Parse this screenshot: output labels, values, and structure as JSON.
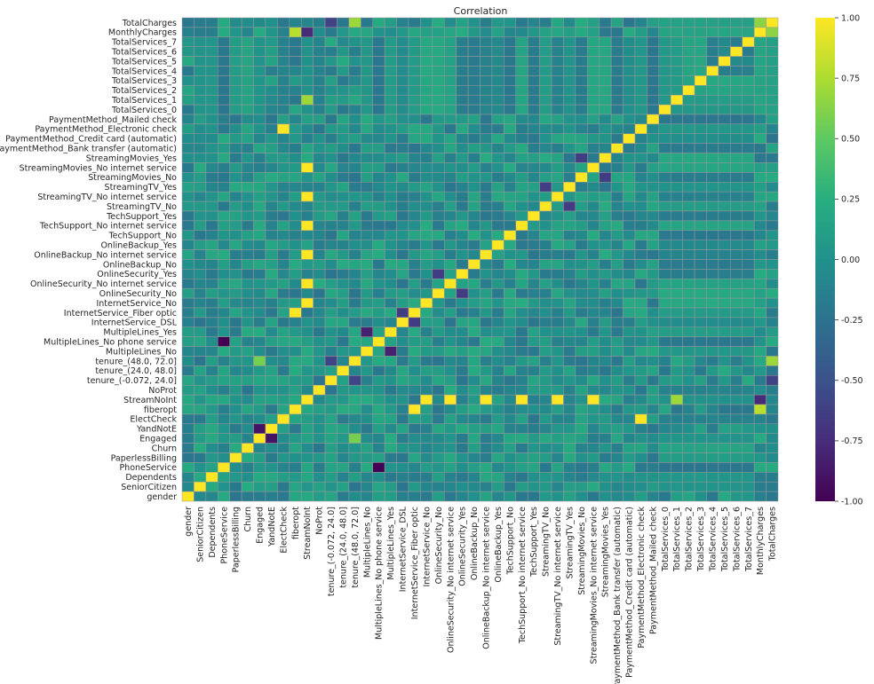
{
  "chart_data": {
    "type": "heatmap",
    "title": "Correlation",
    "variables": [
      "gender",
      "SeniorCitizen",
      "Dependents",
      "PhoneService",
      "PaperlessBilling",
      "Churn",
      "Engaged",
      "YandNotE",
      "ElectCheck",
      "fiberopt",
      "StreamNoInt",
      "NoProt",
      "tenure_(-0.072, 24.0]",
      "tenure_(24.0, 48.0]",
      "tenure_(48.0, 72.0]",
      "MultipleLines_No",
      "MultipleLines_No phone service",
      "MultipleLines_Yes",
      "InternetService_DSL",
      "InternetService_Fiber optic",
      "InternetService_No",
      "OnlineSecurity_No",
      "OnlineSecurity_No internet service",
      "OnlineSecurity_Yes",
      "OnlineBackup_No",
      "OnlineBackup_No internet service",
      "OnlineBackup_Yes",
      "TechSupport_No",
      "TechSupport_No internet service",
      "TechSupport_Yes",
      "StreamingTV_No",
      "StreamingTV_No internet service",
      "StreamingTV_Yes",
      "StreamingMovies_No",
      "StreamingMovies_No internet service",
      "StreamingMovies_Yes",
      "PaymentMethod_Bank transfer (automatic)",
      "PaymentMethod_Credit card (automatic)",
      "PaymentMethod_Electronic check",
      "PaymentMethod_Mailed check",
      "TotalServices_0",
      "TotalServices_1",
      "TotalServices_2",
      "TotalServices_3",
      "TotalServices_4",
      "TotalServices_5",
      "TotalServices_6",
      "TotalServices_7",
      "MonthlyCharges",
      "TotalCharges"
    ],
    "row_labels_top_to_bottom": [
      "TotalCharges",
      "MonthlyCharges",
      "TotalServices_7",
      "TotalServices_6",
      "TotalServices_5",
      "TotalServices_4",
      "TotalServices_3",
      "TotalServices_2",
      "TotalServices_1",
      "TotalServices_0",
      "PaymentMethod_Mailed check",
      "PaymentMethod_Electronic check",
      "PaymentMethod_Credit card (automatic)",
      "PaymentMethod_Bank transfer (automatic)",
      "StreamingMovies_Yes",
      "StreamingMovies_No internet service",
      "StreamingMovies_No",
      "StreamingTV_Yes",
      "StreamingTV_No internet service",
      "StreamingTV_No",
      "TechSupport_Yes",
      "TechSupport_No internet service",
      "TechSupport_No",
      "OnlineBackup_Yes",
      "OnlineBackup_No internet service",
      "OnlineBackup_No",
      "OnlineSecurity_Yes",
      "OnlineSecurity_No internet service",
      "OnlineSecurity_No",
      "InternetService_No",
      "InternetService_Fiber optic",
      "InternetService_DSL",
      "MultipleLines_Yes",
      "MultipleLines_No phone service",
      "MultipleLines_No",
      "tenure_(48.0, 72.0]",
      "tenure_(24.0, 48.0]",
      "tenure_(-0.072, 24.0]",
      "NoProt",
      "StreamNoInt",
      "fiberopt",
      "ElectCheck",
      "YandNotE",
      "Engaged",
      "Churn",
      "PaperlessBilling",
      "PhoneService",
      "Dependents",
      "SeniorCitizen",
      "gender"
    ],
    "colorbar": {
      "min": -1.0,
      "max": 1.0,
      "ticks": [
        "1.00",
        "0.75",
        "0.50",
        "0.25",
        "0.00",
        "-0.25",
        "-0.50",
        "-0.75",
        "-1.00"
      ]
    },
    "colormap": "viridis",
    "notable_values": [
      {
        "a": "StreamNoInt",
        "b": "InternetService_No",
        "value": 1.0
      },
      {
        "a": "StreamNoInt",
        "b": "OnlineSecurity_No internet service",
        "value": 1.0
      },
      {
        "a": "StreamNoInt",
        "b": "OnlineBackup_No internet service",
        "value": 1.0
      },
      {
        "a": "StreamNoInt",
        "b": "TechSupport_No internet service",
        "value": 1.0
      },
      {
        "a": "StreamNoInt",
        "b": "StreamingTV_No internet service",
        "value": 1.0
      },
      {
        "a": "StreamNoInt",
        "b": "StreamingMovies_No internet service",
        "value": 1.0
      },
      {
        "a": "fiberopt",
        "b": "InternetService_Fiber optic",
        "value": 1.0
      },
      {
        "a": "ElectCheck",
        "b": "PaymentMethod_Electronic check",
        "value": 1.0
      },
      {
        "a": "PhoneService",
        "b": "MultipleLines_No phone service",
        "value": -1.0
      },
      {
        "a": "YandNotE",
        "b": "Engaged",
        "value": -0.9
      },
      {
        "a": "MonthlyCharges",
        "b": "TotalCharges",
        "value": 0.65
      },
      {
        "a": "MonthlyCharges",
        "b": "StreamNoInt",
        "value": -0.76
      },
      {
        "a": "MonthlyCharges",
        "b": "fiberopt",
        "value": 0.79
      },
      {
        "a": "TotalCharges",
        "b": "tenure_(48.0, 72.0]",
        "value": 0.7
      },
      {
        "a": "TotalCharges",
        "b": "tenure_(-0.072, 24.0]",
        "value": -0.6
      },
      {
        "a": "TotalServices_1",
        "b": "StreamNoInt",
        "value": 0.7
      },
      {
        "a": "InternetService_DSL",
        "b": "InternetService_Fiber optic",
        "value": -0.64
      },
      {
        "a": "MultipleLines_No",
        "b": "MultipleLines_Yes",
        "value": -0.82
      },
      {
        "a": "tenure_(-0.072, 24.0]",
        "b": "tenure_(48.0, 72.0]",
        "value": -0.6
      },
      {
        "a": "Engaged",
        "b": "tenure_(48.0, 72.0]",
        "value": 0.58
      },
      {
        "a": "OnlineSecurity_No",
        "b": "OnlineSecurity_Yes",
        "value": -0.64
      },
      {
        "a": "StreamingTV_No",
        "b": "StreamingTV_Yes",
        "value": -0.64
      },
      {
        "a": "StreamingMovies_No",
        "b": "StreamingMovies_Yes",
        "value": -0.64
      }
    ]
  }
}
